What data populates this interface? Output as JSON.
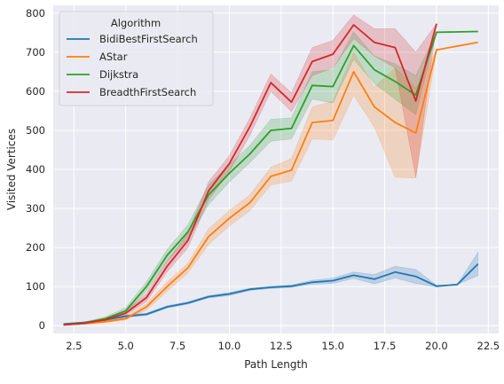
{
  "chart_data": {
    "type": "line",
    "title": "",
    "xlabel": "Path Length",
    "ylabel": "Visited Vertices",
    "xlim": [
      1.5,
      23.0
    ],
    "ylim": [
      -20,
      820
    ],
    "xticks": [
      2.5,
      5.0,
      7.5,
      10.0,
      12.5,
      15.0,
      17.5,
      20.0,
      22.5
    ],
    "xtick_labels": [
      "2.5",
      "5.0",
      "7.5",
      "10.0",
      "12.5",
      "15.0",
      "17.5",
      "20.0",
      "22.5"
    ],
    "yticks": [
      0,
      100,
      200,
      300,
      400,
      500,
      600,
      700,
      800
    ],
    "ytick_labels": [
      "0",
      "100",
      "200",
      "300",
      "400",
      "500",
      "600",
      "700",
      "800"
    ],
    "grid": true,
    "background": "#eaeaf2",
    "legend": {
      "title": "Algorithm",
      "placement": "top-left"
    },
    "series": [
      {
        "name": "BidiBestFirstSearch",
        "color": "#1f77b4",
        "x": [
          2,
          3,
          4,
          5,
          6,
          7,
          8,
          9,
          10,
          11,
          12,
          13,
          14,
          15,
          16,
          17,
          18,
          19,
          20,
          21,
          22
        ],
        "y": [
          4,
          8,
          15,
          24,
          29,
          48,
          58,
          74,
          81,
          93,
          98,
          101,
          111,
          115,
          129,
          119,
          137,
          126,
          101,
          105,
          158
        ],
        "lower": [
          2,
          6,
          12,
          21,
          26,
          45,
          55,
          71,
          77,
          90,
          95,
          98,
          106,
          108,
          121,
          107,
          122,
          108,
          99,
          105,
          128
        ],
        "upper": [
          6,
          10,
          18,
          27,
          32,
          51,
          61,
          77,
          85,
          96,
          101,
          104,
          116,
          122,
          137,
          131,
          152,
          144,
          103,
          105,
          188
        ]
      },
      {
        "name": "AStar",
        "color": "#ff7f0e",
        "x": [
          2,
          3,
          4,
          5,
          6,
          7,
          8,
          9,
          10,
          11,
          12,
          13,
          14,
          15,
          16,
          17,
          18,
          19,
          20,
          22
        ],
        "y": [
          2,
          5,
          10,
          18,
          48,
          100,
          148,
          228,
          275,
          315,
          382,
          398,
          520,
          525,
          650,
          560,
          520,
          493,
          706,
          725
        ],
        "lower": [
          1,
          4,
          8,
          14,
          40,
          88,
          135,
          208,
          255,
          295,
          360,
          370,
          478,
          475,
          590,
          508,
          380,
          378,
          706,
          725
        ],
        "upper": [
          3,
          6,
          12,
          22,
          56,
          112,
          160,
          248,
          295,
          335,
          405,
          428,
          560,
          575,
          700,
          610,
          660,
          608,
          706,
          725
        ]
      },
      {
        "name": "Dijkstra",
        "color": "#2ca02c",
        "x": [
          2,
          3,
          4,
          5,
          6,
          7,
          8,
          9,
          10,
          11,
          12,
          13,
          14,
          15,
          16,
          17,
          18,
          19,
          20,
          22
        ],
        "y": [
          3,
          7,
          18,
          38,
          100,
          180,
          240,
          335,
          390,
          440,
          500,
          505,
          615,
          612,
          717,
          655,
          625,
          590,
          751,
          753
        ],
        "lower": [
          2,
          5,
          14,
          30,
          88,
          165,
          222,
          310,
          368,
          418,
          472,
          478,
          580,
          570,
          682,
          620,
          580,
          540,
          751,
          753
        ],
        "upper": [
          4,
          9,
          22,
          46,
          112,
          195,
          258,
          360,
          412,
          462,
          528,
          532,
          650,
          655,
          752,
          690,
          670,
          640,
          751,
          753
        ]
      },
      {
        "name": "BreadthFirstSearch",
        "color": "#d62728",
        "x": [
          2,
          3,
          4,
          5,
          6,
          7,
          8,
          9,
          10,
          11,
          12,
          13,
          14,
          15,
          16,
          17,
          18,
          19,
          20
        ],
        "y": [
          2,
          6,
          15,
          32,
          72,
          152,
          218,
          345,
          415,
          510,
          622,
          572,
          676,
          695,
          770,
          725,
          712,
          575,
          773
        ],
        "lower": [
          1,
          4,
          12,
          26,
          62,
          138,
          200,
          322,
          395,
          488,
          600,
          548,
          640,
          660,
          735,
          690,
          660,
          380,
          773
        ],
        "upper": [
          3,
          8,
          18,
          38,
          82,
          166,
          236,
          368,
          435,
          532,
          644,
          596,
          712,
          730,
          795,
          760,
          760,
          700,
          773
        ]
      }
    ]
  }
}
